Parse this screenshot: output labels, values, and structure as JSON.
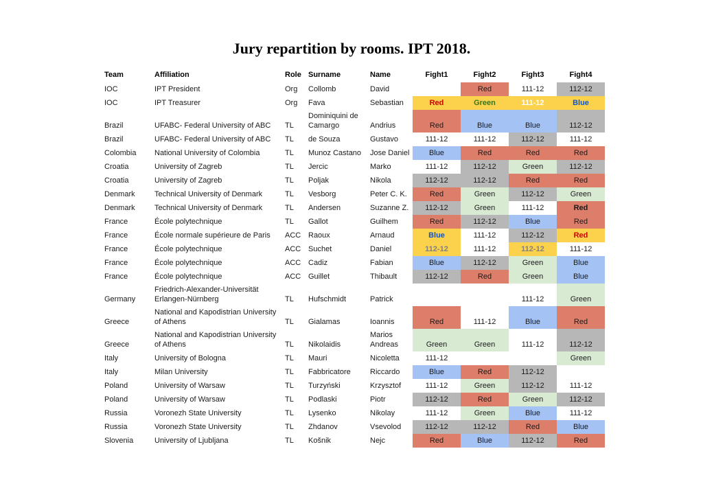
{
  "page": {
    "background": "#ffffff"
  },
  "title": "Jury repartition by rooms. IPT 2018.",
  "palette": {
    "red": "#dd7e6b",
    "blue": "#a4c2f4",
    "green": "#d9ead3",
    "gray": "#b7b7b7",
    "yellow": "#fcd24d"
  },
  "text_colors": {
    "red": "#cc0000",
    "green": "#38761d",
    "blue": "#1155cc",
    "white": "#ffffff",
    "gray": "#808080"
  },
  "table": {
    "columns": [
      "Team",
      "Affiliation",
      "Role",
      "Surname",
      "Name",
      "Fight1",
      "Fight2",
      "Fight3",
      "Fight4"
    ],
    "rows": [
      {
        "team": "IOC",
        "affiliation": "IPT President",
        "role": "Org",
        "surname": "Collomb",
        "name": "David",
        "fights": [
          {
            "t": ""
          },
          {
            "t": "Red",
            "bg": "red"
          },
          {
            "t": "111-12"
          },
          {
            "t": "112-12",
            "bg": "gray"
          }
        ]
      },
      {
        "team": "IOC",
        "affiliation": "IPT Treasurer",
        "role": "Org",
        "surname": "Fava",
        "name": "Sebastian",
        "fights": [
          {
            "t": "Red",
            "bg": "yellow",
            "fg": "#cc0000",
            "bold": true
          },
          {
            "t": "Green",
            "bg": "yellow",
            "fg": "#38761d",
            "bold": true
          },
          {
            "t": "111-12",
            "bg": "yellow",
            "fg": "#ffffff",
            "bold": true
          },
          {
            "t": "Blue",
            "bg": "yellow",
            "fg": "#1155cc",
            "bold": true
          }
        ]
      },
      {
        "team": "Brazil",
        "affiliation": "UFABC- Federal University of ABC",
        "role": "TL",
        "surname": "Dominiquini de Camargo",
        "name": "Andrius",
        "fights": [
          {
            "t": "Red",
            "bg": "red"
          },
          {
            "t": "Blue",
            "bg": "blue"
          },
          {
            "t": "Blue",
            "bg": "blue"
          },
          {
            "t": "112-12",
            "bg": "gray"
          }
        ]
      },
      {
        "team": "Brazil",
        "affiliation": "UFABC- Federal University of ABC",
        "role": "TL",
        "surname": "de Souza",
        "name": "Gustavo",
        "fights": [
          {
            "t": "111-12"
          },
          {
            "t": "111-12"
          },
          {
            "t": "112-12",
            "bg": "gray"
          },
          {
            "t": "111-12"
          }
        ]
      },
      {
        "team": "Colombia",
        "affiliation": "National University of Colombia",
        "role": "TL",
        "surname": "Munoz Castano",
        "name": "Jose Daniel",
        "fights": [
          {
            "t": "Blue",
            "bg": "blue"
          },
          {
            "t": "Red",
            "bg": "red"
          },
          {
            "t": "Red",
            "bg": "red"
          },
          {
            "t": "Red",
            "bg": "red"
          }
        ]
      },
      {
        "team": "Croatia",
        "affiliation": "University of Zagreb",
        "role": "TL",
        "surname": "Jercic",
        "name": "Marko",
        "fights": [
          {
            "t": "111-12"
          },
          {
            "t": "112-12",
            "bg": "gray"
          },
          {
            "t": "Green",
            "bg": "green"
          },
          {
            "t": "112-12",
            "bg": "gray"
          }
        ]
      },
      {
        "team": "Croatia",
        "affiliation": "University of Zagreb",
        "role": "TL",
        "surname": "Poljak",
        "name": "Nikola",
        "fights": [
          {
            "t": "112-12",
            "bg": "gray"
          },
          {
            "t": "112-12",
            "bg": "gray"
          },
          {
            "t": "Red",
            "bg": "red"
          },
          {
            "t": "Red",
            "bg": "red"
          }
        ]
      },
      {
        "team": "Denmark",
        "affiliation": "Technical University of Denmark",
        "role": "TL",
        "surname": "Vesborg",
        "name": "Peter C. K.",
        "fights": [
          {
            "t": "Red",
            "bg": "red"
          },
          {
            "t": "Green",
            "bg": "green"
          },
          {
            "t": "112-12",
            "bg": "gray"
          },
          {
            "t": "Green",
            "bg": "green"
          }
        ]
      },
      {
        "team": "Denmark",
        "affiliation": "Technical University of Denmark",
        "role": "TL",
        "surname": "Andersen",
        "name": "Suzanne Z.",
        "fights": [
          {
            "t": "112-12",
            "bg": "gray"
          },
          {
            "t": "Green",
            "bg": "green"
          },
          {
            "t": "111-12"
          },
          {
            "t": "Red",
            "bg": "red",
            "bold": true
          }
        ]
      },
      {
        "team": "France",
        "affiliation": "École polytechnique",
        "role": "TL",
        "surname": "Gallot",
        "name": "Guilhem",
        "fights": [
          {
            "t": "Red",
            "bg": "red"
          },
          {
            "t": "112-12",
            "bg": "gray"
          },
          {
            "t": "Blue",
            "bg": "blue"
          },
          {
            "t": "Red",
            "bg": "red"
          }
        ]
      },
      {
        "team": "France",
        "affiliation": "École normale supérieure de Paris",
        "role": "ACC",
        "surname": "Raoux",
        "name": "Arnaud",
        "fights": [
          {
            "t": "Blue",
            "bg": "yellow",
            "fg": "#1155cc",
            "bold": true
          },
          {
            "t": "111-12"
          },
          {
            "t": "112-12",
            "bg": "gray"
          },
          {
            "t": "Red",
            "bg": "yellow",
            "fg": "#cc0000",
            "bold": true
          }
        ]
      },
      {
        "team": "France",
        "affiliation": "École polytechnique",
        "role": "ACC",
        "surname": "Suchet",
        "name": "Daniel",
        "fights": [
          {
            "t": "112-12",
            "bg": "yellow",
            "fg": "#808080",
            "bold": true
          },
          {
            "t": "111-12"
          },
          {
            "t": "112-12",
            "bg": "yellow",
            "fg": "#808080",
            "bold": true
          },
          {
            "t": "111-12"
          }
        ]
      },
      {
        "team": "France",
        "affiliation": "École polytechnique",
        "role": "ACC",
        "surname": "Cadiz",
        "name": "Fabian",
        "fights": [
          {
            "t": "Blue",
            "bg": "blue"
          },
          {
            "t": "112-12",
            "bg": "gray"
          },
          {
            "t": "Green",
            "bg": "green"
          },
          {
            "t": "Blue",
            "bg": "blue"
          }
        ]
      },
      {
        "team": "France",
        "affiliation": "École polytechnique",
        "role": "ACC",
        "surname": "Guillet",
        "name": "Thibault",
        "fights": [
          {
            "t": "112-12",
            "bg": "gray"
          },
          {
            "t": "Red",
            "bg": "red"
          },
          {
            "t": "Green",
            "bg": "green"
          },
          {
            "t": "Blue",
            "bg": "blue"
          }
        ]
      },
      {
        "team": "Germany",
        "affiliation": "Friedrich-Alexander-Universität Erlangen-Nürnberg",
        "role": "TL",
        "surname": "Hufschmidt",
        "name": "Patrick",
        "fights": [
          {
            "t": ""
          },
          {
            "t": ""
          },
          {
            "t": "111-12"
          },
          {
            "t": "Green",
            "bg": "green"
          }
        ]
      },
      {
        "team": "Greece",
        "affiliation": "National and Kapodistrian University of Athens",
        "role": "TL",
        "surname": "Gialamas",
        "name": "Ioannis",
        "fights": [
          {
            "t": "Red",
            "bg": "red"
          },
          {
            "t": "111-12"
          },
          {
            "t": "Blue",
            "bg": "blue"
          },
          {
            "t": "Red",
            "bg": "red"
          }
        ]
      },
      {
        "team": "Greece",
        "affiliation": "National and Kapodistrian University of Athens",
        "role": "TL",
        "surname": "Nikolaidis",
        "name": "Marios Andreas",
        "fights": [
          {
            "t": "Green",
            "bg": "green"
          },
          {
            "t": "Green",
            "bg": "green"
          },
          {
            "t": "111-12"
          },
          {
            "t": "112-12",
            "bg": "gray"
          }
        ]
      },
      {
        "team": "Italy",
        "affiliation": "University of Bologna",
        "role": "TL",
        "surname": "Mauri",
        "name": "Nicoletta",
        "fights": [
          {
            "t": "111-12"
          },
          {
            "t": ""
          },
          {
            "t": ""
          },
          {
            "t": "Green",
            "bg": "green"
          }
        ]
      },
      {
        "team": "Italy",
        "affiliation": "Milan University",
        "role": "TL",
        "surname": "Fabbricatore",
        "name": "Riccardo",
        "fights": [
          {
            "t": "Blue",
            "bg": "blue"
          },
          {
            "t": "Red",
            "bg": "red"
          },
          {
            "t": "112-12",
            "bg": "gray"
          },
          {
            "t": ""
          }
        ]
      },
      {
        "team": "Poland",
        "affiliation": "University of Warsaw",
        "role": "TL",
        "surname": "Turzyński",
        "name": "Krzysztof",
        "fights": [
          {
            "t": "111-12"
          },
          {
            "t": "Green",
            "bg": "green"
          },
          {
            "t": "112-12",
            "bg": "gray"
          },
          {
            "t": "111-12"
          }
        ]
      },
      {
        "team": "Poland",
        "affiliation": "University of Warsaw",
        "role": "TL",
        "surname": "Podlaski",
        "name": "Piotr",
        "fights": [
          {
            "t": "112-12",
            "bg": "gray"
          },
          {
            "t": "Red",
            "bg": "red"
          },
          {
            "t": "Green",
            "bg": "green"
          },
          {
            "t": "112-12",
            "bg": "gray"
          }
        ]
      },
      {
        "team": "Russia",
        "affiliation": "Voronezh State University",
        "role": "TL",
        "surname": "Lysenko",
        "name": "Nikolay",
        "fights": [
          {
            "t": "111-12"
          },
          {
            "t": "Green",
            "bg": "green"
          },
          {
            "t": "Blue",
            "bg": "blue"
          },
          {
            "t": "111-12"
          }
        ]
      },
      {
        "team": "Russia",
        "affiliation": "Voronezh State University",
        "role": "TL",
        "surname": "Zhdanov",
        "name": "Vsevolod",
        "fights": [
          {
            "t": "112-12",
            "bg": "gray"
          },
          {
            "t": "112-12",
            "bg": "gray"
          },
          {
            "t": "Red",
            "bg": "red"
          },
          {
            "t": "Blue",
            "bg": "blue"
          }
        ]
      },
      {
        "team": "Slovenia",
        "affiliation": "University of Ljubljana",
        "role": "TL",
        "surname": "Košnik",
        "name": "Nejc",
        "fights": [
          {
            "t": "Red",
            "bg": "red"
          },
          {
            "t": "Blue",
            "bg": "blue"
          },
          {
            "t": "112-12",
            "bg": "gray"
          },
          {
            "t": "Red",
            "bg": "red"
          }
        ]
      }
    ]
  }
}
